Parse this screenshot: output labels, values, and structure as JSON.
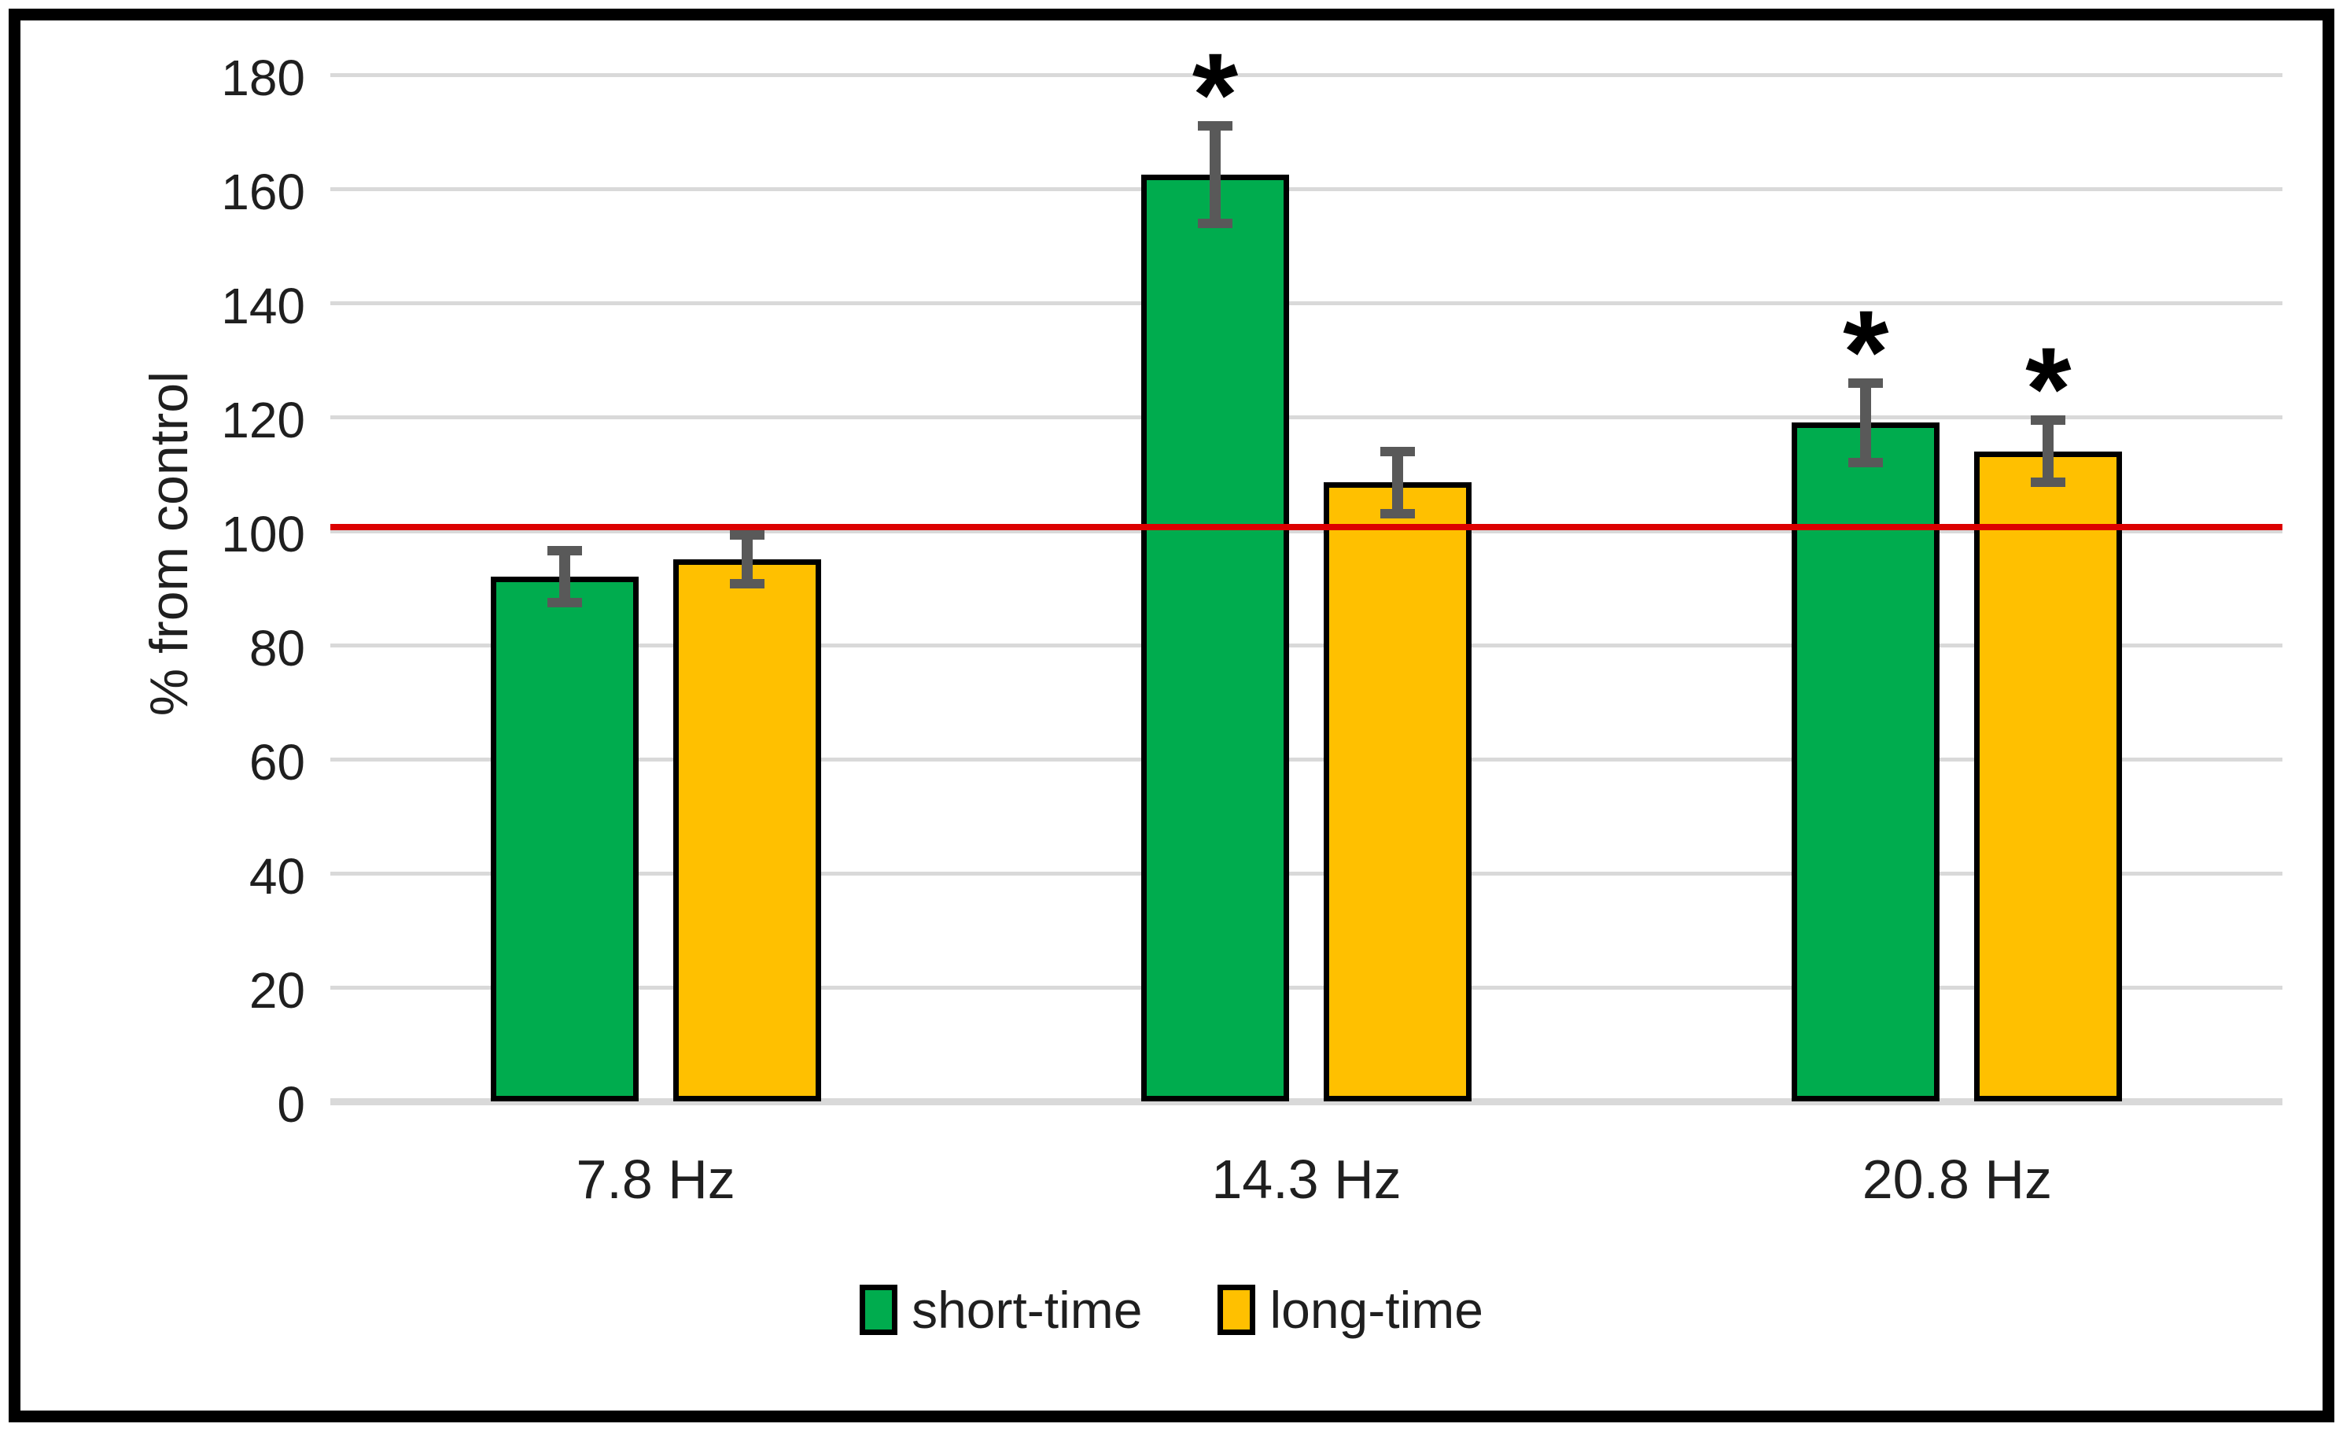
{
  "chart_data": {
    "type": "bar",
    "title": "",
    "ylabel": "% from control",
    "categories": [
      "7.8 Hz",
      "14.3 Hz",
      "20.8 Hz"
    ],
    "series": [
      {
        "name": "short-time",
        "color": "#00AC4E",
        "values": [
          92,
          162.5,
          119
        ],
        "errors": [
          4.5,
          8.5,
          7
        ],
        "significant": [
          false,
          true,
          true
        ]
      },
      {
        "name": "long-time",
        "color": "#FFC000",
        "values": [
          95,
          108.5,
          114
        ],
        "errors": [
          4.3,
          5.5,
          5.5
        ],
        "significant": [
          false,
          false,
          true
        ]
      }
    ],
    "ylim": [
      0,
      180
    ],
    "yticks": [
      0,
      20,
      40,
      60,
      80,
      100,
      120,
      140,
      160,
      180
    ],
    "grid": true,
    "gridline_color": "#D9D9D9",
    "reference_line": {
      "value": 100,
      "color": "#DC0000"
    },
    "significance_marker": "*",
    "legend_position": "bottom",
    "error_bar_color": "#595959",
    "bar_border_color": "#000000",
    "frame_color": "#000000",
    "text_color": "#1F1F1F"
  }
}
